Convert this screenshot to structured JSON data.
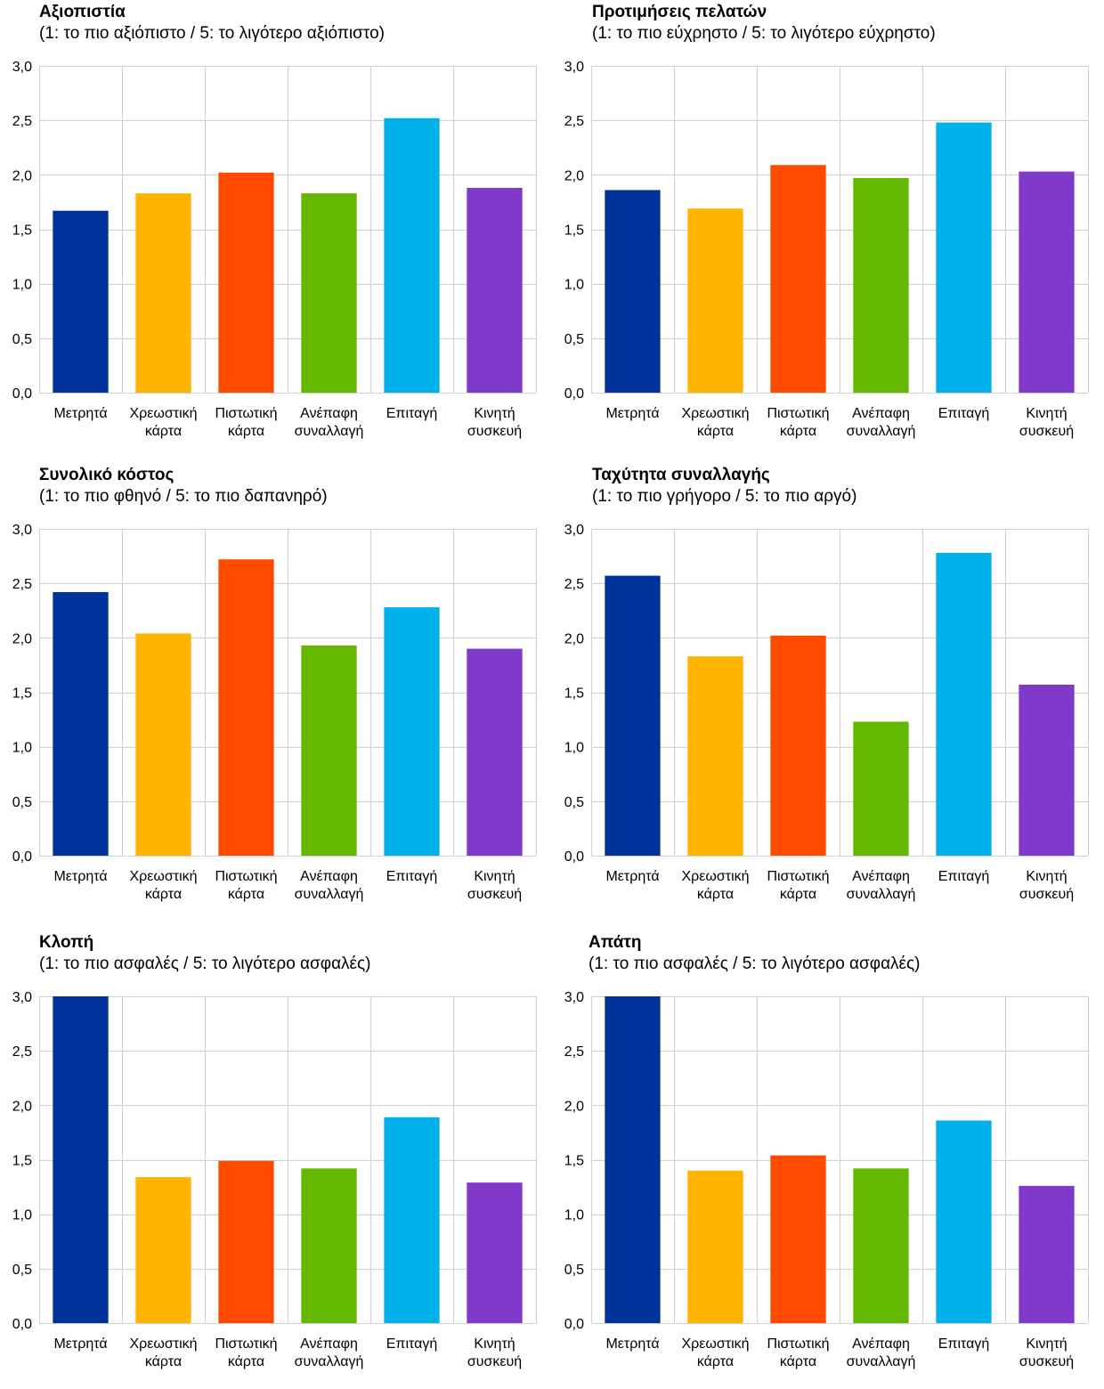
{
  "colors": [
    "#003299",
    "#FFB400",
    "#FF4B00",
    "#65B800",
    "#00B1EA",
    "#8139C9"
  ],
  "y_ticks": [
    "0,0",
    "0,5",
    "1,0",
    "1,5",
    "2,0",
    "2,5",
    "3,0"
  ],
  "chart_data": [
    {
      "type": "bar",
      "title": "Αξιοπιστία",
      "subtitle": "(1: το πιο αξιόπιστο / 5: το λιγότερο αξιόπιστο)",
      "categories": [
        [
          "Μετρητά"
        ],
        [
          "Χρεωστική",
          "κάρτα"
        ],
        [
          "Πιστωτική",
          "κάρτα"
        ],
        [
          "Ανέπαφη",
          "συναλλαγή"
        ],
        [
          "Επιταγή"
        ],
        [
          "Κινητή",
          "συσκευή"
        ]
      ],
      "values": [
        1.67,
        1.83,
        2.02,
        1.83,
        2.52,
        1.88
      ],
      "ylim": [
        0,
        3
      ],
      "grid": true
    },
    {
      "type": "bar",
      "title": "Προτιμήσεις πελατών",
      "subtitle": "(1: το πιο εύχρηστο / 5: το λιγότερο εύχρηστο)",
      "categories": [
        [
          "Μετρητά"
        ],
        [
          "Χρεωστική",
          "κάρτα"
        ],
        [
          "Πιστωτική",
          "κάρτα"
        ],
        [
          "Ανέπαφη",
          "συναλλαγή"
        ],
        [
          "Επιταγή"
        ],
        [
          "Κινητή",
          "συσκευή"
        ]
      ],
      "values": [
        1.86,
        1.69,
        2.09,
        1.97,
        2.48,
        2.03
      ],
      "ylim": [
        0,
        3
      ],
      "grid": true
    },
    {
      "type": "bar",
      "title": "Συνολικό κόστος",
      "subtitle": "(1: το πιο φθηνό / 5: το πιο δαπανηρό)",
      "categories": [
        [
          "Μετρητά"
        ],
        [
          "Χρεωστική",
          "κάρτα"
        ],
        [
          "Πιστωτική",
          "κάρτα"
        ],
        [
          "Ανέπαφη",
          "συναλλαγή"
        ],
        [
          "Επιταγή"
        ],
        [
          "Κινητή",
          "συσκευή"
        ]
      ],
      "values": [
        2.42,
        2.04,
        2.72,
        1.93,
        2.28,
        1.9
      ],
      "ylim": [
        0,
        3
      ],
      "grid": true
    },
    {
      "type": "bar",
      "title": "Ταχύτητα συναλλαγής",
      "subtitle": "(1: το πιο γρήγορο / 5: το πιο αργό)",
      "categories": [
        [
          "Μετρητά"
        ],
        [
          "Χρεωστική",
          "κάρτα"
        ],
        [
          "Πιστωτική",
          "κάρτα"
        ],
        [
          "Ανέπαφη",
          "συναλλαγή"
        ],
        [
          "Επιταγή"
        ],
        [
          "Κινητή",
          "συσκευή"
        ]
      ],
      "values": [
        2.57,
        1.83,
        2.02,
        1.23,
        2.78,
        1.57
      ],
      "ylim": [
        0,
        3
      ],
      "grid": true
    },
    {
      "type": "bar",
      "title": "Κλοπή",
      "subtitle": "(1: το πιο ασφαλές / 5: το λιγότερο ασφαλές)",
      "categories": [
        [
          "Μετρητά"
        ],
        [
          "Χρεωστική",
          "κάρτα"
        ],
        [
          "Πιστωτική",
          "κάρτα"
        ],
        [
          "Ανέπαφη",
          "συναλλαγή"
        ],
        [
          "Επιταγή"
        ],
        [
          "Κινητή",
          "συσκευή"
        ]
      ],
      "values": [
        3.0,
        1.34,
        1.49,
        1.42,
        1.89,
        1.29
      ],
      "ylim": [
        0,
        3
      ],
      "grid": true
    },
    {
      "type": "bar",
      "title": "Απάτη",
      "subtitle": "(1: το πιο ασφαλές / 5: το λιγότερο ασφαλές)",
      "categories": [
        [
          "Μετρητά"
        ],
        [
          "Χρεωστική",
          "κάρτα"
        ],
        [
          "Πιστωτική",
          "κάρτα"
        ],
        [
          "Ανέπαφη",
          "συναλλαγή"
        ],
        [
          "Επιταγή"
        ],
        [
          "Κινητή",
          "συσκευή"
        ]
      ],
      "values": [
        3.0,
        1.4,
        1.54,
        1.42,
        1.86,
        1.26
      ],
      "ylim": [
        0,
        3
      ],
      "grid": true
    }
  ]
}
